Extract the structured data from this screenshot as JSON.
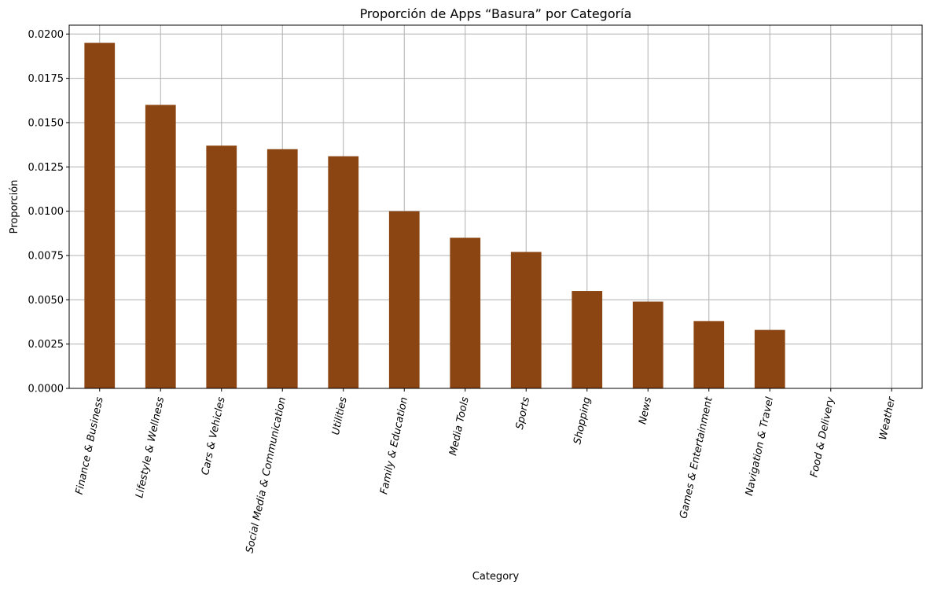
{
  "chart_data": {
    "type": "bar",
    "title": "Proporción de Apps “Basura” por Categoría",
    "xlabel": "Category",
    "ylabel": "Proporción",
    "ylim": [
      0,
      0.0205
    ],
    "yticks": [
      "0.0000",
      "0.0025",
      "0.0050",
      "0.0075",
      "0.0100",
      "0.0125",
      "0.0150",
      "0.0175",
      "0.0200"
    ],
    "grid": true,
    "bar_color": "#8B4513",
    "categories": [
      "Finance & Business",
      "Lifestyle & Wellness",
      "Cars & Vehicles",
      "Social Media & Communication",
      "Utilities",
      "Family & Education",
      "Media Tools",
      "Sports",
      "Shopping",
      "News",
      "Games & Entertainment",
      "Navigation & Travel",
      "Food & Delivery",
      "Weather"
    ],
    "values": [
      0.0195,
      0.016,
      0.0137,
      0.0135,
      0.0131,
      0.01,
      0.0085,
      0.0077,
      0.0055,
      0.0049,
      0.0038,
      0.0033,
      0.0,
      0.0
    ]
  }
}
